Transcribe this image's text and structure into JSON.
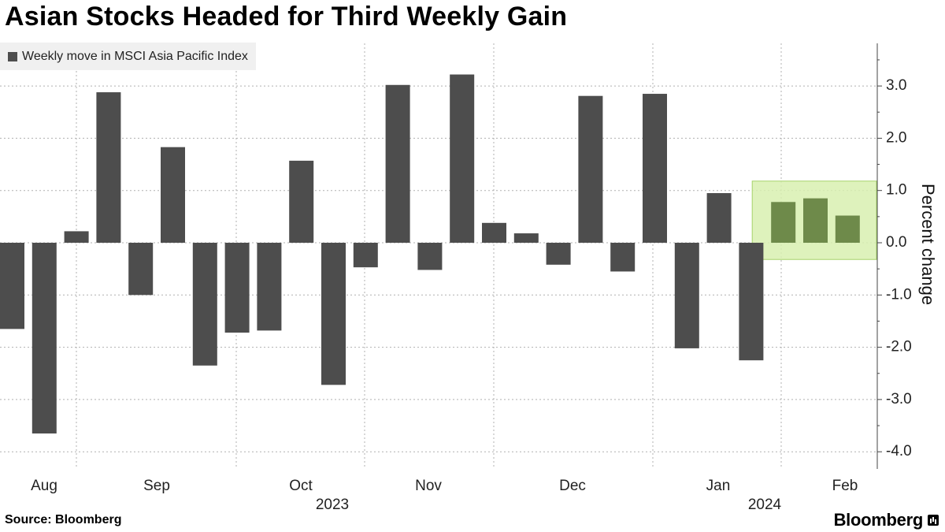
{
  "title": "Asian Stocks Headed for Third Weekly Gain",
  "source": "Source: Bloomberg",
  "brand": "Bloomberg",
  "colors": {
    "bar": "#4d4d4d",
    "highlight_bar": "#6e8a4a",
    "highlight_fill": "#d8f0b0",
    "highlight_stroke": "#a6d26a",
    "grid": "#b0b0b0"
  },
  "chart_data": {
    "type": "bar",
    "legend": [
      "Weekly move in MSCI Asia Pacific Index"
    ],
    "legend_position": "top-left",
    "ylabel": "Percent change",
    "ylim": [
      -4.5,
      3.85
    ],
    "yticks": [
      3.0,
      2.0,
      1.0,
      0.0,
      -1.0,
      -2.0,
      -3.0,
      -4.0
    ],
    "ytick_labels": [
      "3.0",
      "2.0",
      "1.0",
      "0.0",
      "-1.0",
      "-2.0",
      "-3.0",
      "-4.0"
    ],
    "grid": true,
    "x_month_labels": [
      "Aug",
      "Sep",
      "Oct",
      "Nov",
      "Dec",
      "Jan",
      "Feb"
    ],
    "x_year_labels": [
      "2023",
      "2024"
    ],
    "series": [
      {
        "name": "Weekly move in MSCI Asia Pacific Index",
        "values": [
          -1.65,
          -3.65,
          0.22,
          2.88,
          -1.0,
          1.83,
          -2.35,
          -1.72,
          -1.68,
          1.57,
          -2.72,
          -0.47,
          3.02,
          -0.52,
          3.22,
          0.38,
          0.18,
          -0.42,
          2.81,
          -0.55,
          2.85,
          -2.02,
          0.95,
          -2.25,
          0.78,
          0.85,
          0.52
        ]
      }
    ],
    "highlight_last_n": 3
  }
}
